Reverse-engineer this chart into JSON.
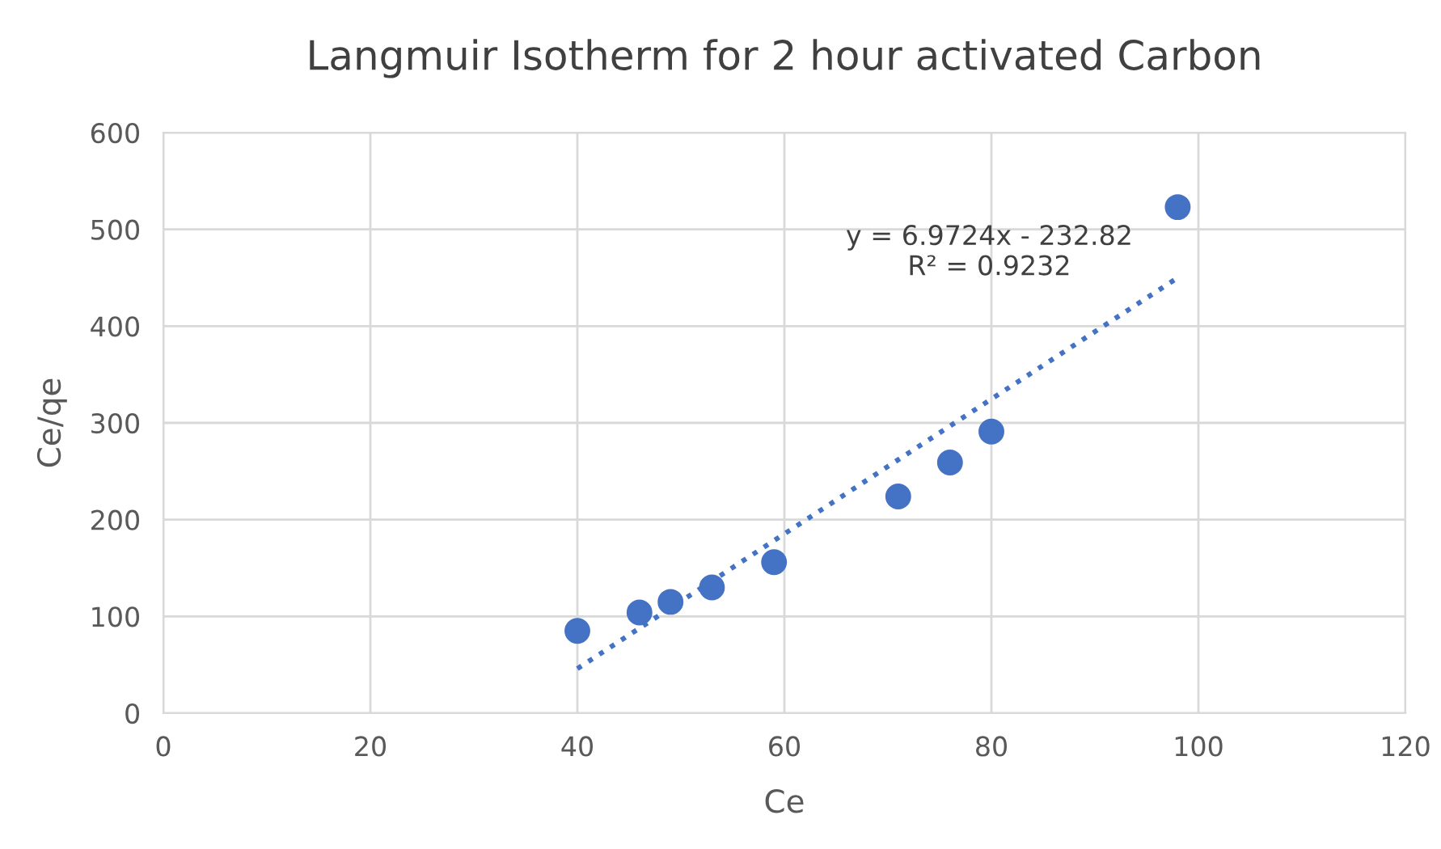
{
  "chart_data": {
    "type": "scatter",
    "title": "Langmuir Isotherm for 2 hour activated Carbon",
    "xlabel": "Ce",
    "ylabel": "Ce/qe",
    "series": [
      {
        "color": "#4472c4",
        "marker": "circle",
        "x": [
          40,
          46,
          49,
          53,
          59,
          71,
          76,
          80,
          98
        ],
        "values": [
          85,
          104,
          115,
          130,
          156,
          224,
          259,
          291,
          523
        ]
      },
      {
        "type": "line",
        "color": "#4472c4",
        "line_style": "dotted",
        "marker": "none",
        "x": [
          40,
          98
        ],
        "values": [
          46,
          450
        ]
      }
    ],
    "annotations": [
      "y = 6.9724x - 232.82\nR² = 0.9232"
    ],
    "xlim": [
      0,
      120
    ],
    "xticks": [
      0,
      20,
      40,
      60,
      80,
      100,
      120
    ],
    "ylim": [
      0,
      600
    ],
    "yticks": [
      0,
      100,
      200,
      300,
      400,
      500,
      600
    ],
    "grid": true,
    "legend": false
  }
}
